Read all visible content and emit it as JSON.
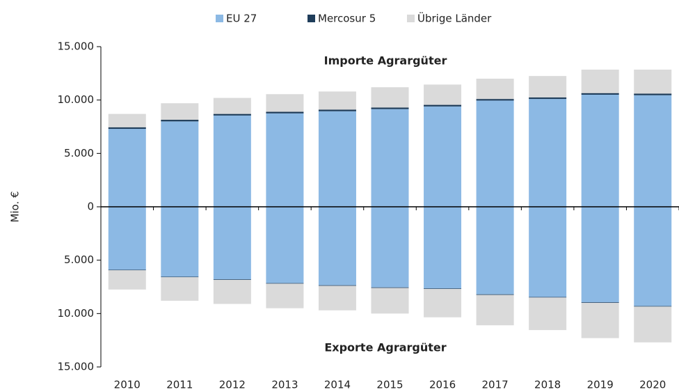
{
  "chart_data": {
    "type": "bar",
    "stacked": true,
    "categories": [
      "2010",
      "2011",
      "2012",
      "2013",
      "2014",
      "2015",
      "2016",
      "2017",
      "2018",
      "2019",
      "2020"
    ],
    "series": [
      {
        "name": "EU 27",
        "color": "#8cb9e4",
        "values": [
          7300,
          8000,
          8550,
          8750,
          8950,
          9150,
          9400,
          9950,
          10100,
          10500,
          10450
        ],
        "export_values": [
          -5900,
          -6550,
          -6800,
          -7150,
          -7350,
          -7550,
          -7650,
          -8200,
          -8450,
          -8950,
          -9300
        ]
      },
      {
        "name": "Mercosur 5",
        "color": "#1f3d5a",
        "values": [
          150,
          150,
          150,
          150,
          150,
          150,
          150,
          150,
          150,
          150,
          150
        ],
        "export_values": [
          -50,
          -50,
          -50,
          -50,
          -50,
          -50,
          -50,
          -50,
          -50,
          -50,
          -50
        ]
      },
      {
        "name": "Übrige Länder",
        "color": "#dadada",
        "values": [
          1250,
          1550,
          1500,
          1650,
          1700,
          1900,
          1900,
          1900,
          2000,
          2200,
          2250
        ],
        "export_values": [
          -1800,
          -2200,
          -2250,
          -2300,
          -2300,
          -2400,
          -2650,
          -2850,
          -3050,
          -3300,
          -3350
        ]
      }
    ],
    "ylabel": "Mio. €",
    "annotations": [
      "Importe Agrargüter",
      "Exporte Agrargüter"
    ],
    "ylim": [
      -15000,
      15000
    ],
    "yticks": [
      {
        "value": -15000,
        "label": "15.000"
      },
      {
        "value": -10000,
        "label": "10.000"
      },
      {
        "value": -5000,
        "label": "5.000"
      },
      0,
      {
        "value": 5000,
        "label": "5.000"
      },
      {
        "value": 10000,
        "label": "10.000"
      },
      {
        "value": 15000,
        "label": "15.000"
      }
    ],
    "grid": false,
    "legend": "top"
  }
}
